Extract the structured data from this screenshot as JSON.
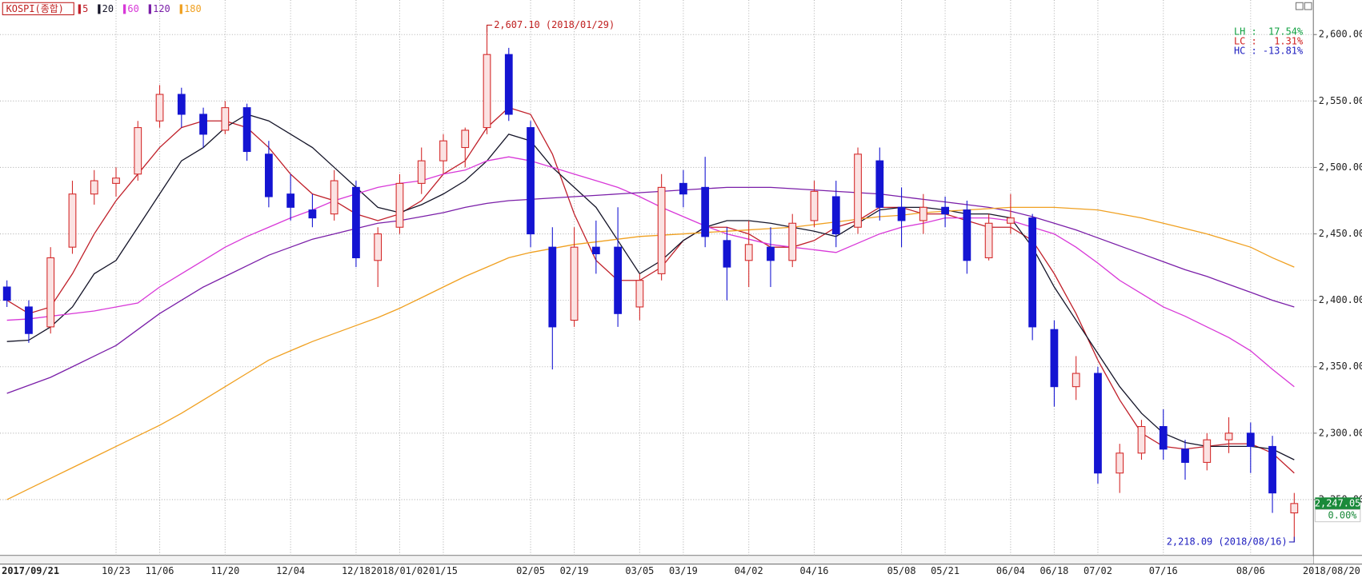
{
  "chart_data": {
    "type": "candlestick",
    "legend": {
      "title": "KOSPI(종합)"
    },
    "categories": [
      "2017/09/21",
      null,
      null,
      null,
      null,
      "10/23",
      null,
      "11/06",
      null,
      null,
      "11/20",
      null,
      null,
      "12/04",
      null,
      null,
      "12/18",
      null,
      "2018/01/02",
      null,
      "01/15",
      null,
      null,
      null,
      "02/05",
      null,
      "02/19",
      null,
      null,
      "03/05",
      null,
      "03/19",
      null,
      null,
      "04/02",
      null,
      null,
      "04/16",
      null,
      null,
      null,
      "05/08",
      null,
      "05/21",
      null,
      null,
      "06/04",
      null,
      "06/18",
      null,
      "07/02",
      null,
      null,
      "07/16",
      null,
      null,
      null,
      "08/06",
      null,
      "2018/08/20"
    ],
    "open": [
      2410,
      2395,
      2380,
      2440,
      2480,
      2488,
      2495,
      2535,
      2555,
      2540,
      2528,
      2545,
      2510,
      2480,
      2468,
      2465,
      2485,
      2430,
      2455,
      2488,
      2505,
      2515,
      2530,
      2585,
      2530,
      2440,
      2385,
      2440,
      2440,
      2395,
      2420,
      2488,
      2485,
      2445,
      2430,
      2440,
      2430,
      2460,
      2478,
      2455,
      2505,
      2470,
      2460,
      2470,
      2468,
      2432,
      2458,
      2462,
      2378,
      2335,
      2345,
      2270,
      2285,
      2305,
      2288,
      2278,
      2295,
      2300,
      2290,
      2240
    ],
    "high": [
      2415,
      2400,
      2440,
      2490,
      2498,
      2500,
      2535,
      2562,
      2560,
      2545,
      2550,
      2548,
      2520,
      2495,
      2480,
      2498,
      2490,
      2455,
      2495,
      2515,
      2525,
      2530,
      2607.1,
      2590,
      2535,
      2455,
      2455,
      2460,
      2470,
      2420,
      2495,
      2498,
      2508,
      2455,
      2460,
      2455,
      2465,
      2490,
      2490,
      2515,
      2515,
      2485,
      2480,
      2478,
      2475,
      2465,
      2480,
      2465,
      2385,
      2358,
      2350,
      2292,
      2310,
      2318,
      2295,
      2300,
      2312,
      2308,
      2298,
      2255
    ],
    "low": [
      2395,
      2368,
      2375,
      2435,
      2472,
      2478,
      2490,
      2530,
      2530,
      2515,
      2525,
      2505,
      2470,
      2460,
      2455,
      2460,
      2425,
      2410,
      2450,
      2480,
      2495,
      2500,
      2525,
      2535,
      2440,
      2348,
      2380,
      2420,
      2380,
      2385,
      2415,
      2470,
      2440,
      2400,
      2410,
      2410,
      2425,
      2455,
      2440,
      2450,
      2460,
      2440,
      2450,
      2455,
      2420,
      2430,
      2450,
      2370,
      2320,
      2325,
      2262,
      2255,
      2280,
      2280,
      2265,
      2272,
      2285,
      2270,
      2240,
      2218.09
    ],
    "close": [
      2400,
      2375,
      2432,
      2480,
      2490,
      2492,
      2530,
      2555,
      2540,
      2525,
      2545,
      2512,
      2478,
      2470,
      2462,
      2490,
      2432,
      2450,
      2488,
      2505,
      2520,
      2528,
      2585,
      2540,
      2450,
      2380,
      2440,
      2435,
      2390,
      2415,
      2485,
      2480,
      2448,
      2425,
      2442,
      2430,
      2458,
      2482,
      2450,
      2510,
      2470,
      2460,
      2470,
      2465,
      2430,
      2458,
      2462,
      2380,
      2335,
      2345,
      2270,
      2285,
      2305,
      2288,
      2278,
      2295,
      2300,
      2290,
      2255,
      2247.05
    ],
    "up_color": "#d42a2a",
    "down_color": "#1414d2",
    "series": [
      {
        "name": "5",
        "color": "#c0202a",
        "values": [
          2400,
          2390,
          2395,
          2420,
          2450,
          2475,
          2495,
          2515,
          2530,
          2535,
          2535,
          2530,
          2515,
          2495,
          2480,
          2475,
          2465,
          2460,
          2465,
          2475,
          2495,
          2505,
          2530,
          2545,
          2540,
          2510,
          2465,
          2430,
          2415,
          2415,
          2425,
          2445,
          2455,
          2455,
          2450,
          2440,
          2440,
          2445,
          2455,
          2460,
          2470,
          2470,
          2465,
          2465,
          2460,
          2455,
          2455,
          2445,
          2420,
          2390,
          2355,
          2325,
          2300,
          2290,
          2288,
          2290,
          2292,
          2292,
          2285,
          2270
        ]
      },
      {
        "name": "20",
        "color": "#141428",
        "values": [
          2369,
          2370,
          2380,
          2395,
          2420,
          2430,
          2455,
          2480,
          2505,
          2515,
          2530,
          2540,
          2535,
          2525,
          2515,
          2500,
          2485,
          2470,
          2466,
          2472,
          2480,
          2490,
          2505,
          2525,
          2520,
          2500,
          2485,
          2470,
          2445,
          2420,
          2430,
          2445,
          2455,
          2460,
          2460,
          2458,
          2455,
          2452,
          2448,
          2458,
          2468,
          2470,
          2470,
          2468,
          2465,
          2465,
          2462,
          2440,
          2410,
          2385,
          2360,
          2335,
          2315,
          2300,
          2293,
          2290,
          2290,
          2290,
          2288,
          2280
        ]
      },
      {
        "name": "60",
        "color": "#d838d8",
        "values": [
          2385,
          2386,
          2388,
          2390,
          2392,
          2395,
          2398,
          2410,
          2420,
          2430,
          2440,
          2448,
          2455,
          2462,
          2468,
          2475,
          2480,
          2485,
          2488,
          2490,
          2495,
          2498,
          2505,
          2508,
          2505,
          2500,
          2495,
          2490,
          2485,
          2478,
          2470,
          2463,
          2456,
          2450,
          2446,
          2442,
          2440,
          2438,
          2436,
          2443,
          2450,
          2455,
          2458,
          2462,
          2462,
          2462,
          2460,
          2455,
          2450,
          2440,
          2428,
          2415,
          2405,
          2395,
          2388,
          2380,
          2372,
          2362,
          2348,
          2335
        ]
      },
      {
        "name": "120",
        "color": "#7a1ea8",
        "values": [
          2330,
          2336,
          2342,
          2350,
          2358,
          2366,
          2378,
          2390,
          2400,
          2410,
          2418,
          2426,
          2434,
          2440,
          2446,
          2450,
          2454,
          2458,
          2460,
          2463,
          2466,
          2470,
          2473,
          2475,
          2476,
          2477,
          2478,
          2479,
          2480,
          2481,
          2482,
          2483,
          2484,
          2485,
          2485,
          2485,
          2484,
          2483,
          2482,
          2481,
          2480,
          2478,
          2476,
          2474,
          2472,
          2470,
          2467,
          2463,
          2458,
          2453,
          2447,
          2441,
          2435,
          2429,
          2423,
          2418,
          2412,
          2406,
          2400,
          2395
        ]
      },
      {
        "name": "180",
        "color": "#f0a020",
        "values": [
          2250,
          2258,
          2266,
          2274,
          2282,
          2290,
          2298,
          2306,
          2315,
          2325,
          2335,
          2345,
          2355,
          2362,
          2369,
          2375,
          2381,
          2387,
          2394,
          2402,
          2410,
          2418,
          2425,
          2432,
          2436,
          2439,
          2442,
          2444,
          2446,
          2448,
          2449,
          2450,
          2451,
          2452,
          2453,
          2454,
          2455,
          2457,
          2459,
          2461,
          2463,
          2464,
          2466,
          2467,
          2468,
          2469,
          2470,
          2470,
          2470,
          2469,
          2468,
          2465,
          2462,
          2458,
          2454,
          2450,
          2445,
          2440,
          2432,
          2425
        ]
      }
    ],
    "ylim": [
      2208,
      2626
    ],
    "yticks": [
      {
        "value": 2250,
        "label": "2,250.00"
      },
      {
        "value": 2300,
        "label": "2,300.00"
      },
      {
        "value": 2350,
        "label": "2,350.00"
      },
      {
        "value": 2400,
        "label": "2,400.00"
      },
      {
        "value": 2450,
        "label": "2,450.00"
      },
      {
        "value": 2500,
        "label": "2,500.00"
      },
      {
        "value": 2550,
        "label": "2,550.00"
      },
      {
        "value": 2600,
        "label": "2,600.00"
      }
    ],
    "grid": true,
    "high_label": "2,607.10 (2018/01/29)",
    "low_label": "2,218.09 (2018/08/16)",
    "last_label": "2,247.05",
    "change_label": "0.00%",
    "stats": [
      {
        "text": "LH :  17.54%",
        "color": "#10a040"
      },
      {
        "text": "LC :   1.31%",
        "color": "#d02020"
      },
      {
        "text": "HC : -13.81%",
        "color": "#2020c0"
      }
    ]
  }
}
